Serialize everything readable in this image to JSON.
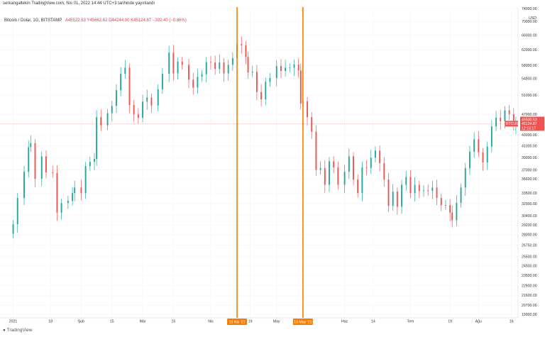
{
  "caption": "serkangaltekin TradingView.com, Nis 01, 2022 14:44 UTC+3 tarihinde yayınlandı",
  "legend": {
    "symbol": "Bitcoin / Dolar, 1G, BITSTAMP",
    "ohlc": "A45522.53  Y45662.62  D44244.00  K45124.87  −392.40 (−0.86%)"
  },
  "footer": {
    "logo_text": "TradingView"
  },
  "colors": {
    "up": "#26a69a",
    "down": "#ef5350",
    "marker": "#f57c00",
    "price_line": "#ef5350",
    "grid": "#f0f3fa"
  },
  "price_tags": {
    "last": "45124.87",
    "high_label": "45930.53",
    "symbol_tag": "BTCUSD",
    "countdown": "12:15:17"
  },
  "chart_data": {
    "type": "candlestick",
    "currency": "USD",
    "y_axis_scale": "log",
    "ylim": [
      19600,
      74000
    ],
    "y_ticks": [
      "74000.00",
      "70000.00",
      "66000.00",
      "62000.00",
      "58000.00",
      "54800.00",
      "51000.00",
      "47000.00",
      "45000.00",
      "43000.00",
      "41000.00",
      "39000.00",
      "37000.00",
      "35600.00",
      "33500.00",
      "32000.00",
      "30400.00",
      "29200.00",
      "28000.00",
      "26750.00",
      "25500.00",
      "24500.00",
      "23500.00",
      "22500.00",
      "21600.00",
      "20700.00",
      "19900.00"
    ],
    "x_ticks": [
      {
        "date": "2021-01-01",
        "label": "2021"
      },
      {
        "date": "2021-01-18",
        "label": "18"
      },
      {
        "date": "2021-02-01",
        "label": "Şub"
      },
      {
        "date": "2021-02-15",
        "label": "15"
      },
      {
        "date": "2021-03-01",
        "label": "Mar"
      },
      {
        "date": "2021-03-15",
        "label": "15"
      },
      {
        "date": "2021-04-01",
        "label": "Nis"
      },
      {
        "date": "2021-04-19",
        "label": "19"
      },
      {
        "date": "2021-05-01",
        "label": "May"
      },
      {
        "date": "2021-06-01",
        "label": "Haz"
      },
      {
        "date": "2021-06-14",
        "label": "14"
      },
      {
        "date": "2021-07-01",
        "label": "Tem"
      },
      {
        "date": "2021-07-19",
        "label": "19"
      },
      {
        "date": "2021-08-01",
        "label": "Ağu"
      },
      {
        "date": "2021-08-16",
        "label": "16"
      }
    ],
    "markers": [
      {
        "date": "2021-04-13",
        "label": "13 Nis '21"
      },
      {
        "date": "2021-05-13",
        "label": "13 May '21"
      }
    ],
    "last_price": 45124.87,
    "series_close": [
      [
        "2021-01-01",
        29300
      ],
      [
        "2021-01-03",
        32800
      ],
      [
        "2021-01-06",
        36700
      ],
      [
        "2021-01-08",
        40800
      ],
      [
        "2021-01-09",
        41500
      ],
      [
        "2021-01-11",
        35600
      ],
      [
        "2021-01-14",
        39200
      ],
      [
        "2021-01-16",
        36600
      ],
      [
        "2021-01-19",
        36500
      ],
      [
        "2021-01-21",
        30800
      ],
      [
        "2021-01-23",
        32100
      ],
      [
        "2021-01-26",
        32400
      ],
      [
        "2021-01-28",
        33500
      ],
      [
        "2021-01-29",
        34300
      ],
      [
        "2021-02-01",
        33500
      ],
      [
        "2021-02-03",
        37600
      ],
      [
        "2021-02-05",
        38300
      ],
      [
        "2021-02-07",
        38800
      ],
      [
        "2021-02-08",
        46400
      ],
      [
        "2021-02-10",
        44800
      ],
      [
        "2021-02-13",
        47200
      ],
      [
        "2021-02-15",
        48700
      ],
      [
        "2021-02-17",
        52100
      ],
      [
        "2021-02-19",
        55900
      ],
      [
        "2021-02-21",
        57400
      ],
      [
        "2021-02-23",
        48900
      ],
      [
        "2021-02-25",
        47000
      ],
      [
        "2021-02-27",
        46300
      ],
      [
        "2021-03-01",
        49600
      ],
      [
        "2021-03-03",
        50500
      ],
      [
        "2021-03-05",
        48800
      ],
      [
        "2021-03-08",
        52300
      ],
      [
        "2021-03-10",
        55900
      ],
      [
        "2021-03-13",
        61200
      ],
      [
        "2021-03-15",
        56000
      ],
      [
        "2021-03-17",
        58900
      ],
      [
        "2021-03-19",
        58100
      ],
      [
        "2021-03-22",
        54500
      ],
      [
        "2021-03-24",
        52700
      ],
      [
        "2021-03-26",
        55200
      ],
      [
        "2021-03-28",
        55800
      ],
      [
        "2021-03-30",
        58800
      ],
      [
        "2021-04-01",
        58700
      ],
      [
        "2021-04-03",
        57100
      ],
      [
        "2021-04-05",
        58700
      ],
      [
        "2021-04-07",
        56000
      ],
      [
        "2021-04-09",
        58100
      ],
      [
        "2021-04-11",
        59800
      ],
      [
        "2021-04-13",
        63500
      ],
      [
        "2021-04-15",
        63200
      ],
      [
        "2021-04-17",
        60100
      ],
      [
        "2021-04-18",
        56200
      ],
      [
        "2021-04-20",
        56400
      ],
      [
        "2021-04-22",
        51700
      ],
      [
        "2021-04-24",
        50100
      ],
      [
        "2021-04-26",
        54000
      ],
      [
        "2021-04-28",
        54900
      ],
      [
        "2021-05-01",
        57800
      ],
      [
        "2021-05-03",
        56600
      ],
      [
        "2021-05-05",
        57400
      ],
      [
        "2021-05-07",
        57400
      ],
      [
        "2021-05-09",
        58200
      ],
      [
        "2021-05-11",
        56700
      ],
      [
        "2021-05-12",
        49200
      ],
      [
        "2021-05-13",
        49700
      ],
      [
        "2021-05-15",
        46400
      ],
      [
        "2021-05-17",
        43600
      ],
      [
        "2021-05-19",
        37000
      ],
      [
        "2021-05-21",
        37300
      ],
      [
        "2021-05-23",
        34700
      ],
      [
        "2021-05-25",
        38400
      ],
      [
        "2021-05-27",
        37400
      ],
      [
        "2021-05-29",
        34700
      ],
      [
        "2021-06-01",
        36700
      ],
      [
        "2021-06-03",
        39200
      ],
      [
        "2021-06-05",
        35500
      ],
      [
        "2021-06-07",
        33500
      ],
      [
        "2021-06-09",
        37400
      ],
      [
        "2021-06-11",
        37300
      ],
      [
        "2021-06-13",
        39000
      ],
      [
        "2021-06-15",
        40200
      ],
      [
        "2021-06-17",
        38100
      ],
      [
        "2021-06-19",
        35500
      ],
      [
        "2021-06-21",
        31700
      ],
      [
        "2021-06-23",
        33700
      ],
      [
        "2021-06-25",
        31600
      ],
      [
        "2021-06-27",
        34700
      ],
      [
        "2021-06-29",
        35900
      ],
      [
        "2021-07-01",
        33500
      ],
      [
        "2021-07-03",
        34700
      ],
      [
        "2021-07-05",
        33800
      ],
      [
        "2021-07-07",
        33900
      ],
      [
        "2021-07-09",
        33800
      ],
      [
        "2021-07-11",
        34300
      ],
      [
        "2021-07-13",
        32800
      ],
      [
        "2021-07-15",
        31800
      ],
      [
        "2021-07-17",
        31800
      ],
      [
        "2021-07-19",
        30800
      ],
      [
        "2021-07-20",
        29800
      ],
      [
        "2021-07-22",
        32100
      ],
      [
        "2021-07-24",
        34300
      ],
      [
        "2021-07-26",
        37300
      ],
      [
        "2021-07-28",
        40000
      ],
      [
        "2021-07-30",
        42200
      ],
      [
        "2021-08-01",
        39900
      ],
      [
        "2021-08-03",
        38200
      ],
      [
        "2021-08-05",
        40900
      ],
      [
        "2021-08-07",
        44600
      ],
      [
        "2021-08-09",
        46300
      ],
      [
        "2021-08-11",
        45600
      ],
      [
        "2021-08-13",
        47800
      ],
      [
        "2021-08-15",
        47000
      ],
      [
        "2021-08-17",
        44700
      ],
      [
        "2021-08-18",
        45100
      ]
    ]
  }
}
